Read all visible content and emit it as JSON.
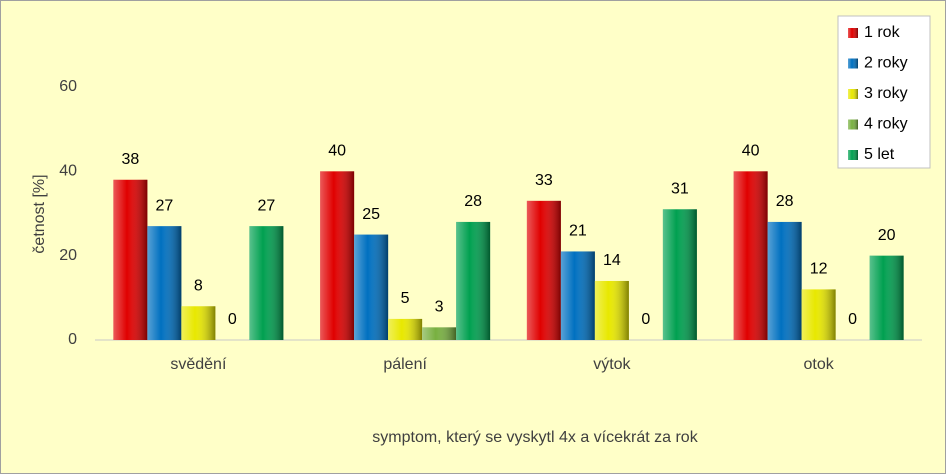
{
  "chart_data": {
    "type": "bar",
    "x_label": "symptom, který se vyskytl 4x a vícekrát za rok",
    "y_label": "četnost [%]",
    "categories": [
      "svědění",
      "pálení",
      "výtok",
      "otok"
    ],
    "series": [
      {
        "name": "1 rok",
        "color": "#e00000",
        "values": [
          38,
          40,
          33,
          40
        ]
      },
      {
        "name": "2 roky",
        "color": "#0070c0",
        "values": [
          27,
          25,
          21,
          28
        ]
      },
      {
        "name": "3 roky",
        "color": "#e8e800",
        "values": [
          8,
          5,
          14,
          12
        ]
      },
      {
        "name": "4 roky",
        "color": "#78b040",
        "values": [
          0,
          3,
          0,
          0
        ]
      },
      {
        "name": "5 let",
        "color": "#00a050",
        "values": [
          27,
          28,
          31,
          20
        ]
      }
    ],
    "ylim": [
      0,
      60
    ],
    "yticks": [
      0,
      20,
      40,
      60
    ],
    "grid": false,
    "legend": "top-right"
  }
}
